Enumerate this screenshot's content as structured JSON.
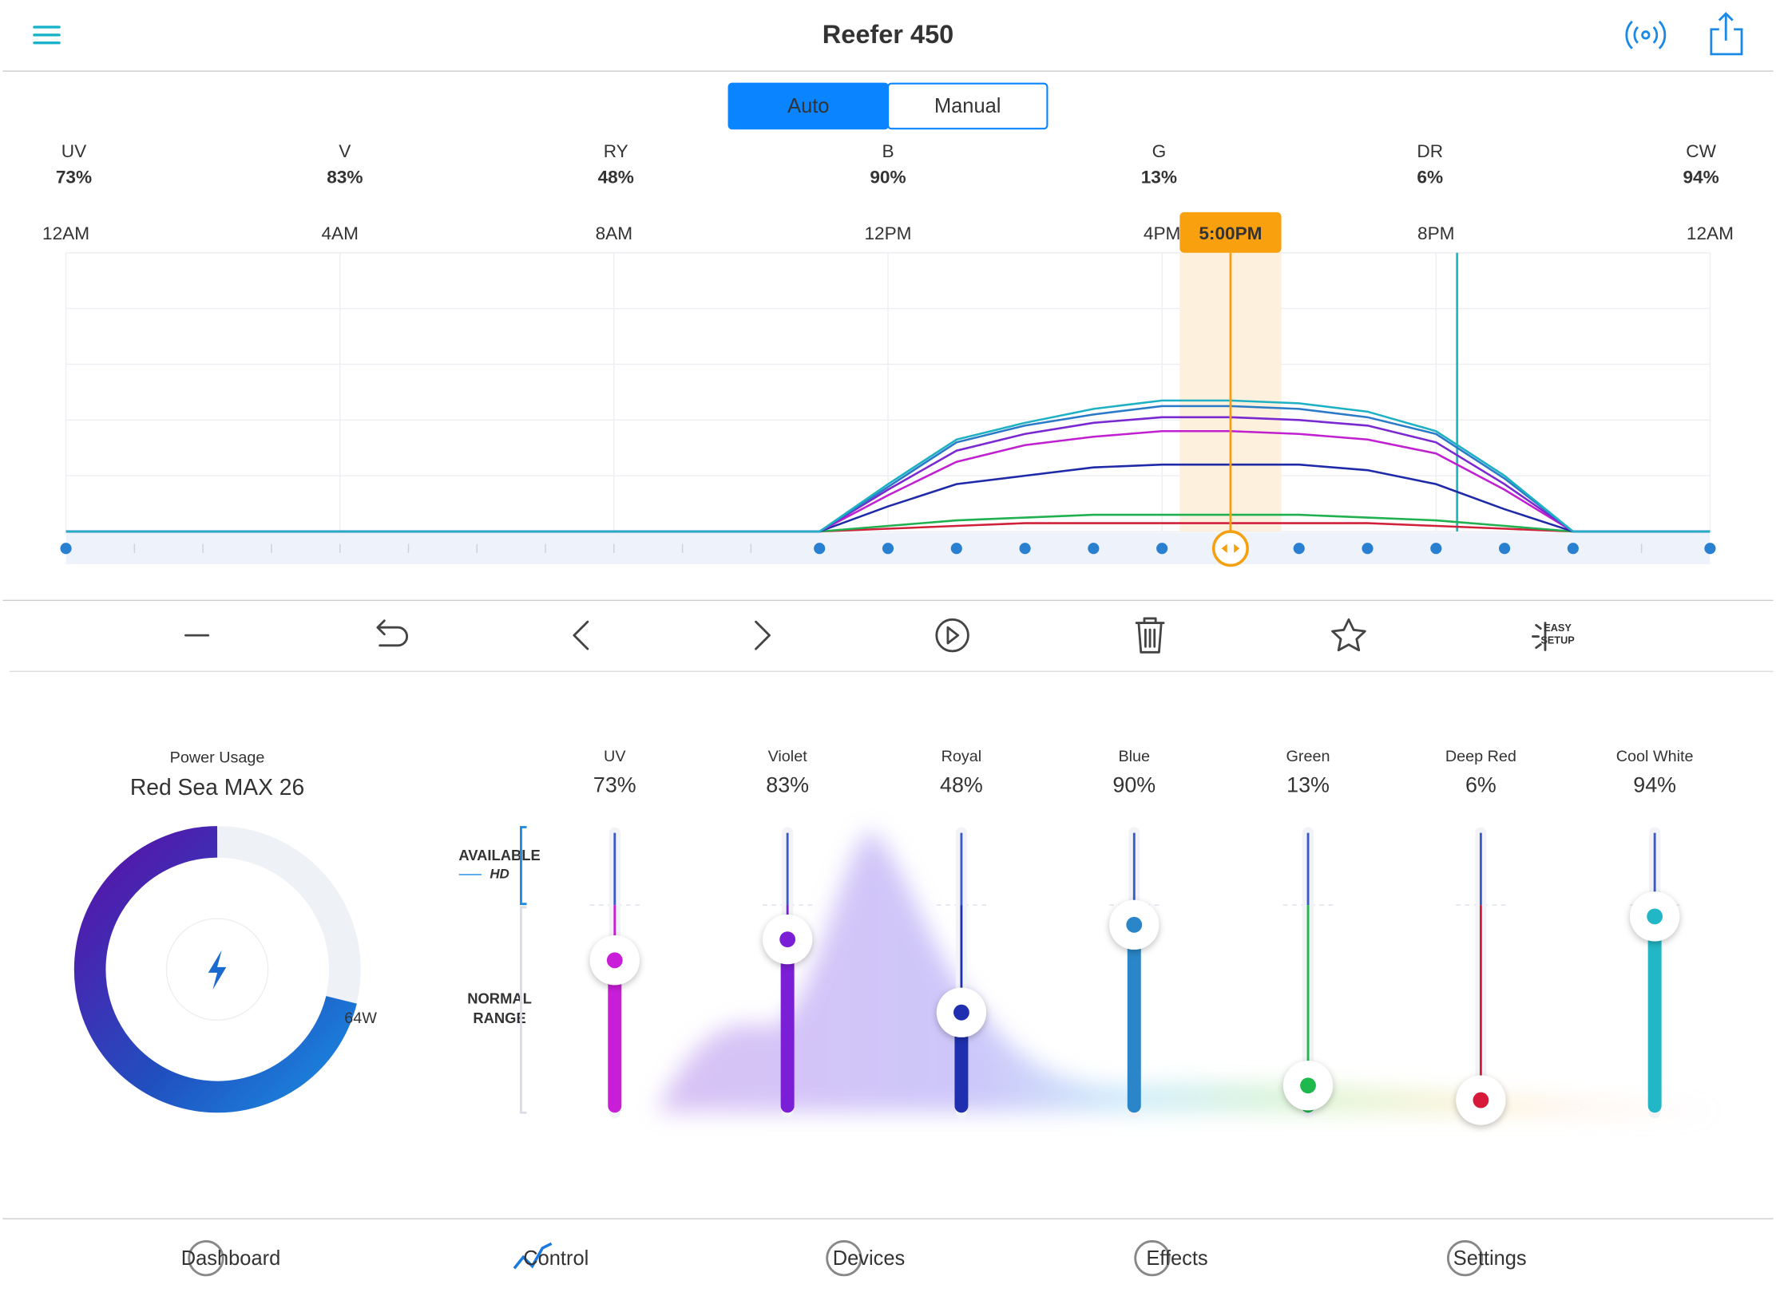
{
  "header": {
    "title": "Reefer 450"
  },
  "mode_toggle": {
    "options": [
      "Auto",
      "Manual"
    ],
    "selected": "Auto"
  },
  "channels": [
    {
      "short": "UV",
      "name": "UV",
      "value": 73,
      "value_label": "73%",
      "color": "#c81ed8"
    },
    {
      "short": "V",
      "name": "Violet",
      "value": 83,
      "value_label": "83%",
      "color": "#7a1fd6"
    },
    {
      "short": "RY",
      "name": "Royal",
      "value": 48,
      "value_label": "48%",
      "color": "#1f2fb0"
    },
    {
      "short": "B",
      "name": "Blue",
      "value": 90,
      "value_label": "90%",
      "color": "#2a86c8"
    },
    {
      "short": "G",
      "name": "Green",
      "value": 13,
      "value_label": "13%",
      "color": "#1fb84c"
    },
    {
      "short": "DR",
      "name": "Deep Red",
      "value": 6,
      "value_label": "6%",
      "color": "#d81a3a"
    },
    {
      "short": "CW",
      "name": "Cool White",
      "value": 94,
      "value_label": "94%",
      "color": "#22b7c6"
    }
  ],
  "schedule": {
    "xlim": [
      0,
      24
    ],
    "ylim": [
      0,
      100
    ],
    "xticks": [
      {
        "value": 0,
        "label": "12AM"
      },
      {
        "value": 4,
        "label": "4AM"
      },
      {
        "value": 8,
        "label": "8AM"
      },
      {
        "value": 12,
        "label": "12PM"
      },
      {
        "value": 16,
        "label": "4PM"
      },
      {
        "value": 20,
        "label": "8PM"
      },
      {
        "value": 24,
        "label": "12AM"
      }
    ],
    "yticks": [
      0,
      20,
      40,
      60,
      80,
      100
    ],
    "x": [
      0,
      11,
      12,
      13,
      14,
      15,
      16,
      17,
      18,
      19,
      20,
      21,
      22,
      24
    ],
    "series": [
      {
        "color": "#d0203a",
        "values": [
          0,
          0,
          1,
          2,
          3,
          3,
          3,
          3,
          3,
          3,
          2,
          1,
          0,
          0
        ]
      },
      {
        "color": "#20b050",
        "values": [
          0,
          0,
          2,
          4,
          5,
          6,
          6,
          6,
          6,
          5,
          4,
          2,
          0,
          0
        ]
      },
      {
        "color": "#1f2aa8",
        "values": [
          0,
          0,
          9,
          17,
          20,
          23,
          24,
          24,
          24,
          22,
          17,
          8,
          0,
          0
        ]
      },
      {
        "color": "#c020d0",
        "values": [
          0,
          0,
          13,
          25,
          31,
          34,
          36,
          36,
          35,
          33,
          28,
          15,
          0,
          0
        ]
      },
      {
        "color": "#7a28d0",
        "values": [
          0,
          0,
          15,
          29,
          35,
          39,
          41,
          41,
          40,
          38,
          32,
          17,
          0,
          0
        ]
      },
      {
        "color": "#2a7ac8",
        "values": [
          0,
          0,
          16,
          32,
          38,
          42,
          45,
          45,
          44,
          41,
          35,
          19,
          0,
          0
        ]
      },
      {
        "color": "#1eb0c3",
        "values": [
          0,
          0,
          17,
          33,
          39,
          44,
          47,
          47,
          46,
          43,
          36,
          20,
          0,
          0
        ]
      }
    ]
  },
  "cursor": {
    "value": 17,
    "label": "5:00PM"
  },
  "power": {
    "title": "Power Usage",
    "device": "Red Sea MAX 26",
    "reading": "64W"
  },
  "slider_legend": {
    "available": "AVAILABLE",
    "hd": "HD",
    "normal": [
      "NORMAL",
      "RANGE"
    ]
  },
  "toolbar": {
    "easy_setup": [
      "EASY",
      "SETUP"
    ]
  },
  "tabs": [
    "Dashboard",
    "Control",
    "Devices",
    "Effects",
    "Settings"
  ],
  "active_tab": "Control"
}
